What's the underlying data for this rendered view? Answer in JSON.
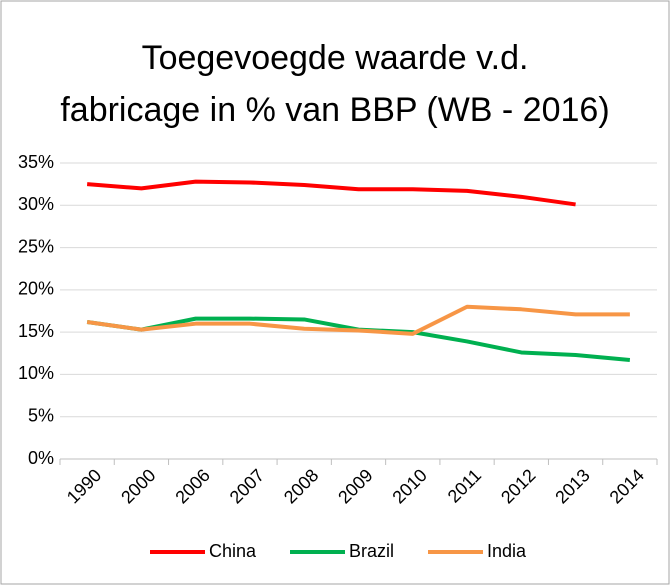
{
  "chart_data": {
    "type": "line",
    "title": [
      "Toegevoegde waarde v.d.",
      "fabricage in % van BBP (WB - 2016)"
    ],
    "categories": [
      "1990",
      "2000",
      "2006",
      "2007",
      "2008",
      "2009",
      "2010",
      "2011",
      "2012",
      "2013",
      "2014"
    ],
    "series": [
      {
        "name": "China",
        "color": "#ff0000",
        "values": [
          32.5,
          32.0,
          32.8,
          32.7,
          32.4,
          31.9,
          31.9,
          31.7,
          31.0,
          30.1,
          null
        ]
      },
      {
        "name": "Brazil",
        "color": "#00b050",
        "values": [
          16.2,
          15.3,
          16.6,
          16.6,
          16.5,
          15.3,
          15.0,
          13.9,
          12.6,
          12.3,
          11.7
        ]
      },
      {
        "name": "India",
        "color": "#f79646",
        "values": [
          16.2,
          15.3,
          16.0,
          16.0,
          15.4,
          15.2,
          14.8,
          18.0,
          17.7,
          17.1,
          17.1
        ]
      }
    ],
    "ylim": [
      0,
      35
    ],
    "yticks": [
      {
        "value": 0,
        "label": "0%"
      },
      {
        "value": 5,
        "label": "5%"
      },
      {
        "value": 10,
        "label": "10%"
      },
      {
        "value": 15,
        "label": "15%"
      },
      {
        "value": 20,
        "label": "20%"
      },
      {
        "value": 25,
        "label": "25%"
      },
      {
        "value": 30,
        "label": "30%"
      },
      {
        "value": 35,
        "label": "35%"
      }
    ],
    "grid": true,
    "legend": "bottom"
  }
}
